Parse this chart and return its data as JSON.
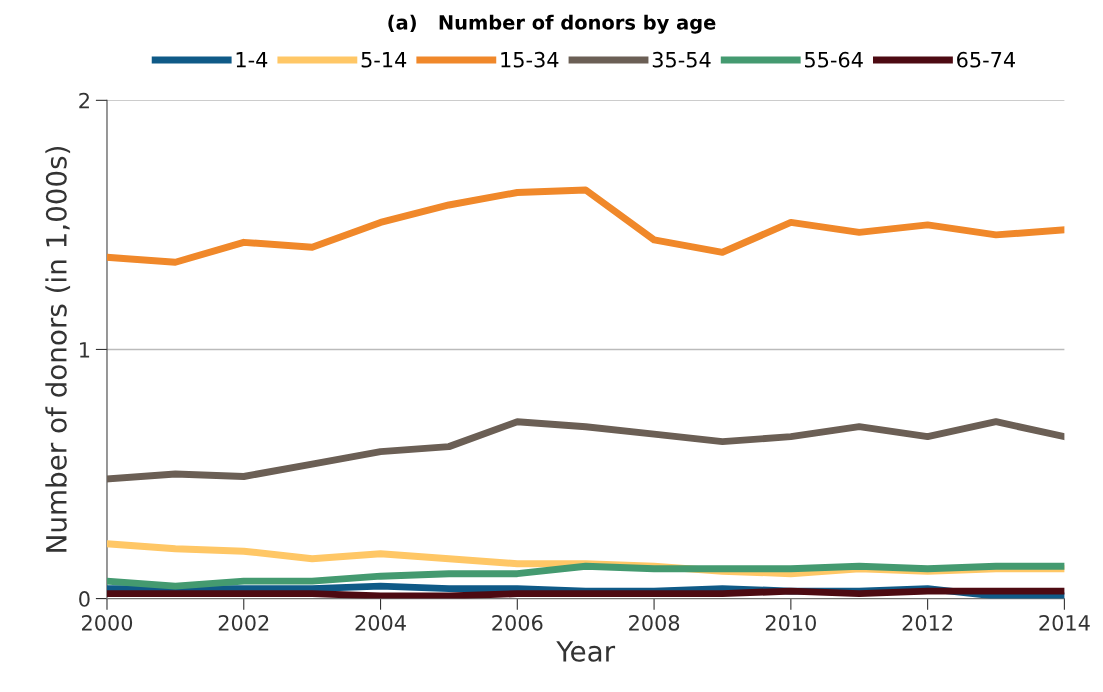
{
  "chart_data": {
    "type": "line",
    "title": "(a)   Number of donors by age",
    "xlabel": "Year",
    "ylabel": "Number of donors (in 1,000s)",
    "x": [
      2000,
      2001,
      2002,
      2003,
      2004,
      2005,
      2006,
      2007,
      2008,
      2009,
      2010,
      2011,
      2012,
      2013,
      2014
    ],
    "series": [
      {
        "name": "1-4",
        "color": "#0f5a87",
        "values": [
          0.04,
          0.04,
          0.04,
          0.04,
          0.05,
          0.04,
          0.04,
          0.03,
          0.03,
          0.04,
          0.03,
          0.03,
          0.04,
          0.01,
          0.01
        ]
      },
      {
        "name": "5-14",
        "color": "#ffc766",
        "values": [
          0.22,
          0.2,
          0.19,
          0.16,
          0.18,
          0.16,
          0.14,
          0.14,
          0.13,
          0.11,
          0.1,
          0.12,
          0.11,
          0.12,
          0.12
        ]
      },
      {
        "name": "15-34",
        "color": "#f0882a",
        "values": [
          1.37,
          1.35,
          1.43,
          1.41,
          1.51,
          1.58,
          1.63,
          1.64,
          1.44,
          1.39,
          1.51,
          1.47,
          1.5,
          1.46,
          1.48
        ]
      },
      {
        "name": "35-54",
        "color": "#6b5f55",
        "values": [
          0.48,
          0.5,
          0.49,
          0.54,
          0.59,
          0.61,
          0.71,
          0.69,
          0.66,
          0.63,
          0.65,
          0.69,
          0.65,
          0.71,
          0.65
        ]
      },
      {
        "name": "55-64",
        "color": "#449a70",
        "values": [
          0.07,
          0.05,
          0.07,
          0.07,
          0.09,
          0.1,
          0.1,
          0.13,
          0.12,
          0.12,
          0.12,
          0.13,
          0.12,
          0.13,
          0.13
        ]
      },
      {
        "name": "65-74",
        "color": "#4d0a12",
        "values": [
          0.02,
          0.02,
          0.02,
          0.02,
          0.01,
          0.01,
          0.02,
          0.02,
          0.02,
          0.02,
          0.03,
          0.02,
          0.03,
          0.03,
          0.03
        ]
      }
    ],
    "xlim": [
      2000,
      2014
    ],
    "xticks": [
      2000,
      2002,
      2004,
      2006,
      2008,
      2010,
      2012,
      2014
    ],
    "ylim": [
      0,
      2
    ],
    "yticks": [
      0,
      1,
      2
    ],
    "grid": "y",
    "legend": "top",
    "marker": "none",
    "line_style": "solid"
  }
}
